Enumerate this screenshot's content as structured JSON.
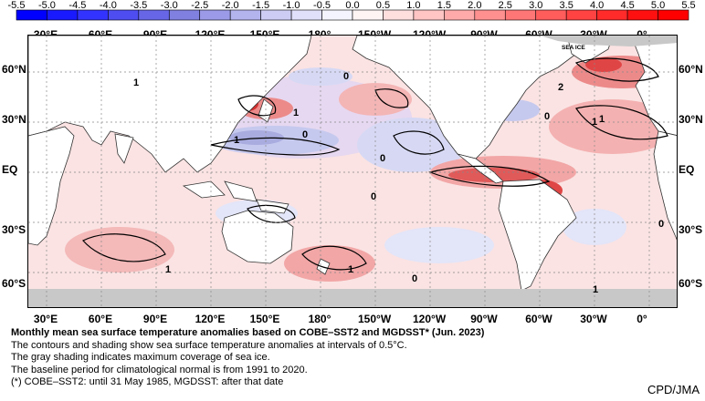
{
  "colorbar": {
    "ticks": [
      "-5.5",
      "-5.0",
      "-4.5",
      "-4.0",
      "-3.5",
      "-3.0",
      "-2.5",
      "-2.0",
      "-1.5",
      "-1.0",
      "-0.5",
      "0.0",
      "0.5",
      "1.0",
      "1.5",
      "2.0",
      "2.5",
      "3.0",
      "3.5",
      "4.0",
      "4.5",
      "5.0",
      "5.5"
    ],
    "colors": [
      "#0000ff",
      "#1a1aff",
      "#3333ff",
      "#4d4df0",
      "#6666e6",
      "#8080e0",
      "#9a9ae8",
      "#b3b3ee",
      "#ccccf4",
      "#e0e0fa",
      "#f4f4ff",
      "#fff4f4",
      "#ffdede",
      "#ffc4c4",
      "#ffaaaa",
      "#ff9090",
      "#ff7676",
      "#ff5c5c",
      "#ff4242",
      "#ff2a2a",
      "#ff1010",
      "#ff0000"
    ]
  },
  "map": {
    "lon_labels": [
      "30°E",
      "60°E",
      "90°E",
      "120°E",
      "150°E",
      "180°",
      "150°W",
      "120°W",
      "90°W",
      "60°W",
      "30°W",
      "0°"
    ],
    "lat_labels": [
      "60°N",
      "30°N",
      "EQ",
      "30°S",
      "60°S"
    ],
    "sea_ice_label": "SEA ICE",
    "contour_labels": [
      "0",
      "1",
      "2",
      "1",
      "0",
      "1",
      "0",
      "1",
      "0",
      "0",
      "1",
      "1",
      "0",
      "0",
      "1",
      "1"
    ],
    "colors": {
      "land": "#ffffff",
      "sea_ice": "#c8c8c8",
      "warm": "#f2a6a6",
      "strong_warm": "#e04545",
      "cool": "#c6c9ee",
      "neutral": "#fbe3e3"
    }
  },
  "caption": {
    "title": "Monthly mean sea surface temperature anomalies based on COBE–SST2 and MGDSST* (Jun. 2023)",
    "lines": [
      "The contours and shading show sea surface temperature anomalies at intervals of 0.5°C.",
      "The gray shading indicates maximum coverage of sea ice.",
      "The baseline period for climatological normal is from 1991 to 2020.",
      "(*) COBE–SST2: until 31 May 1985, MGDSST: after that date"
    ]
  },
  "credit": "CPD/JMA"
}
